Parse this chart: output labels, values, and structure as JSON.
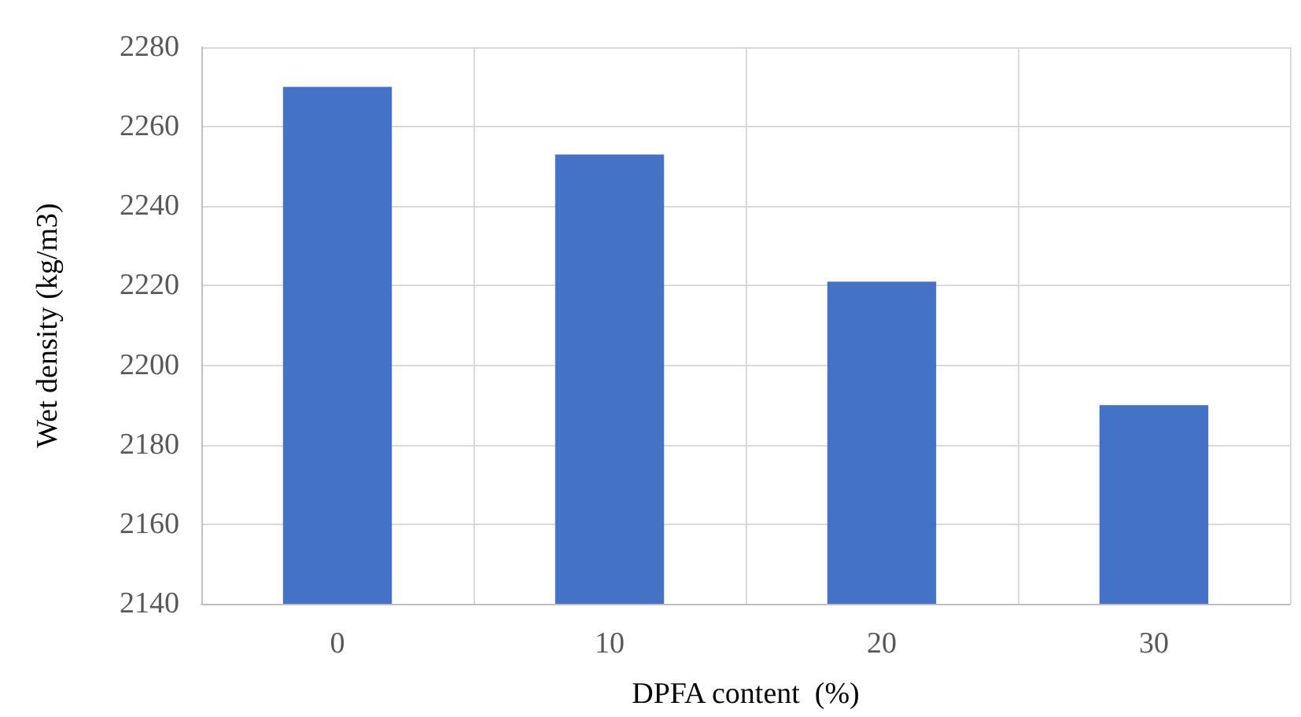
{
  "chart_data": {
    "type": "bar",
    "xlabel": "DPFA content  (%)",
    "ylabel": "Wet density (kg/m3)",
    "categories": [
      "0",
      "10",
      "20",
      "30"
    ],
    "values": [
      2270,
      2253,
      2221,
      2190
    ],
    "color": "#4472c4",
    "ylim": [
      2140,
      2280
    ],
    "yticks": [
      2140,
      2160,
      2180,
      2200,
      2220,
      2240,
      2260,
      2280
    ],
    "grid": true
  }
}
